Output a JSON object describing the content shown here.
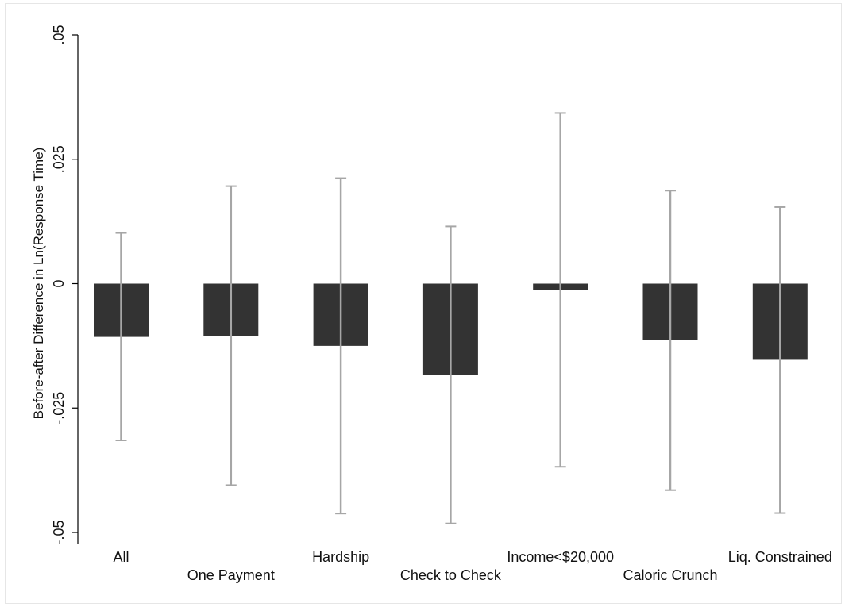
{
  "chart_data": {
    "type": "bar",
    "title": "",
    "xlabel": "",
    "ylabel": "Before-after Difference in Ln(Response Time)",
    "ylim": [
      -0.05,
      0.05
    ],
    "yticks": [
      {
        "value": 0.05,
        "label": ".05"
      },
      {
        "value": 0.025,
        "label": ".025"
      },
      {
        "value": 0,
        "label": "0"
      },
      {
        "value": -0.025,
        "label": "-.025"
      },
      {
        "value": -0.05,
        "label": "-.05"
      }
    ],
    "grid": false,
    "legend": "none",
    "categories": [
      "All",
      "One Payment",
      "Hardship",
      "Check to Check",
      "Income<$20,000",
      "Caloric Crunch",
      "Liq. Constrained"
    ],
    "values": [
      -0.0107,
      -0.0105,
      -0.0125,
      -0.0183,
      -0.0013,
      -0.0113,
      -0.0153
    ],
    "ci_low": [
      -0.0315,
      -0.0405,
      -0.0462,
      -0.0482,
      -0.0368,
      -0.0415,
      -0.0461
    ],
    "ci_high": [
      0.0102,
      0.0196,
      0.0212,
      0.0115,
      0.0343,
      0.0187,
      0.0154
    ],
    "colors": {
      "bar": "#333333",
      "error_bar": "#a6a6a6",
      "axis": "#000000"
    }
  }
}
